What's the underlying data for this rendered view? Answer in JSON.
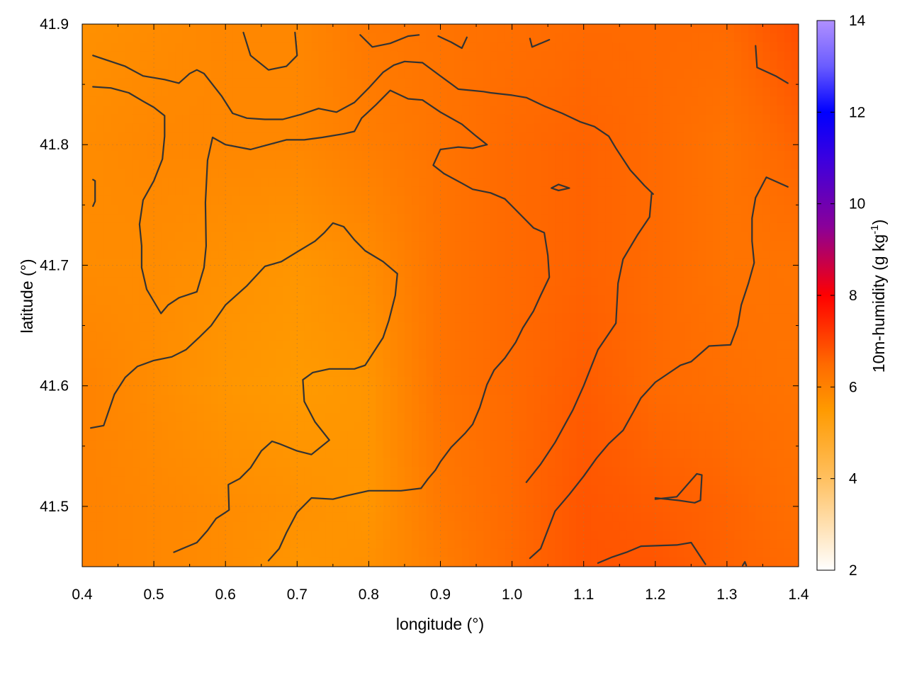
{
  "chart_data": {
    "type": "heatmap",
    "xlabel": "longitude (°)",
    "ylabel": "latitude (°)",
    "colorbar_label": "10m-humidity (g kg",
    "colorbar_label_sup": "-1",
    "colorbar_label_end": ")",
    "xlim": [
      0.4,
      1.4
    ],
    "ylim": [
      41.45,
      41.9
    ],
    "xticks": [
      0.4,
      0.5,
      0.6,
      0.7,
      0.8,
      0.9,
      1.0,
      1.1,
      1.2,
      1.3,
      1.4
    ],
    "xtick_labels": [
      "0.4",
      "0.5",
      "0.6",
      "0.7",
      "0.8",
      "0.9",
      "1.0",
      "1.1",
      "1.2",
      "1.3",
      "1.4"
    ],
    "yticks": [
      41.5,
      41.6,
      41.7,
      41.8,
      41.9
    ],
    "ytick_labels": [
      "41.5",
      "41.6",
      "41.7",
      "41.8",
      "41.9"
    ],
    "colorbar": {
      "range": [
        2,
        14
      ],
      "ticks": [
        2,
        4,
        6,
        8,
        10,
        12,
        14
      ],
      "tick_labels": [
        "2",
        "4",
        "6",
        "8",
        "10",
        "12",
        "14"
      ],
      "stops": [
        {
          "value": 2,
          "color": "#ffffff"
        },
        {
          "value": 4,
          "color": "#ffc060"
        },
        {
          "value": 5.5,
          "color": "#ff9a00"
        },
        {
          "value": 6.5,
          "color": "#ff6a00"
        },
        {
          "value": 8,
          "color": "#ff0000"
        },
        {
          "value": 9.5,
          "color": "#8a0099"
        },
        {
          "value": 11,
          "color": "#3a00e0"
        },
        {
          "value": 12,
          "color": "#0000ff"
        },
        {
          "value": 13,
          "color": "#6a5cff"
        },
        {
          "value": 14,
          "color": "#b090ff"
        }
      ]
    },
    "field_samples": {
      "lon": [
        0.4,
        0.5,
        0.6,
        0.7,
        0.8,
        0.9,
        1.0,
        1.1,
        1.2,
        1.3,
        1.4
      ],
      "lat": [
        41.9,
        41.8,
        41.7,
        41.6,
        41.5,
        41.45
      ],
      "values": [
        [
          5.7,
          5.8,
          5.9,
          5.9,
          6.2,
          6.3,
          6.4,
          6.5,
          6.5,
          6.5,
          6.9
        ],
        [
          5.8,
          5.9,
          5.9,
          5.9,
          6.1,
          6.3,
          6.5,
          6.6,
          6.5,
          6.3,
          6.6
        ],
        [
          5.8,
          5.8,
          5.7,
          5.6,
          5.8,
          6.3,
          6.5,
          6.6,
          6.5,
          6.3,
          6.3
        ],
        [
          6.0,
          5.8,
          5.6,
          5.5,
          5.6,
          6.3,
          6.5,
          6.7,
          6.5,
          6.4,
          6.3
        ],
        [
          6.0,
          5.9,
          5.8,
          5.7,
          5.6,
          6.2,
          6.5,
          6.8,
          6.7,
          6.6,
          6.4
        ],
        [
          6.0,
          5.9,
          5.8,
          5.6,
          5.7,
          6.1,
          6.5,
          6.8,
          6.8,
          6.6,
          6.5
        ]
      ]
    },
    "contours": [
      [
        [
          0.415,
          41.874
        ],
        [
          0.46,
          41.865
        ],
        [
          0.485,
          41.857
        ],
        [
          0.515,
          41.854
        ],
        [
          0.535,
          41.851
        ],
        [
          0.55,
          41.859
        ],
        [
          0.56,
          41.862
        ],
        [
          0.57,
          41.859
        ],
        [
          0.595,
          41.84
        ],
        [
          0.61,
          41.826
        ],
        [
          0.63,
          41.822
        ],
        [
          0.655,
          41.821
        ],
        [
          0.68,
          41.821
        ],
        [
          0.705,
          41.825
        ],
        [
          0.73,
          41.83
        ],
        [
          0.755,
          41.827
        ],
        [
          0.78,
          41.835
        ],
        [
          0.8,
          41.847
        ],
        [
          0.82,
          41.86
        ],
        [
          0.835,
          41.866
        ],
        [
          0.85,
          41.869
        ],
        [
          0.875,
          41.868
        ],
        [
          0.9,
          41.857
        ],
        [
          0.925,
          41.846
        ],
        [
          0.96,
          41.844
        ],
        [
          0.97,
          41.843
        ],
        [
          1.0,
          41.841
        ],
        [
          1.02,
          41.839
        ],
        [
          1.045,
          41.832
        ],
        [
          1.07,
          41.826
        ],
        [
          1.095,
          41.819
        ],
        [
          1.115,
          41.815
        ],
        [
          1.135,
          41.807
        ],
        [
          1.145,
          41.797
        ],
        [
          1.165,
          41.779
        ],
        [
          1.185,
          41.766
        ],
        [
          1.197,
          41.759
        ]
      ],
      [
        [
          0.415,
          41.848
        ],
        [
          0.44,
          41.847
        ],
        [
          0.465,
          41.843
        ],
        [
          0.485,
          41.836
        ],
        [
          0.5,
          41.831
        ],
        [
          0.515,
          41.824
        ],
        [
          0.515,
          41.807
        ],
        [
          0.512,
          41.788
        ],
        [
          0.5,
          41.77
        ],
        [
          0.485,
          41.754
        ],
        [
          0.48,
          41.734
        ],
        [
          0.483,
          41.716
        ],
        [
          0.483,
          41.698
        ],
        [
          0.49,
          41.68
        ],
        [
          0.51,
          41.66
        ],
        [
          0.52,
          41.667
        ],
        [
          0.535,
          41.673
        ],
        [
          0.56,
          41.678
        ],
        [
          0.57,
          41.698
        ],
        [
          0.573,
          41.716
        ],
        [
          0.572,
          41.752
        ],
        [
          0.575,
          41.787
        ],
        [
          0.582,
          41.806
        ],
        [
          0.6,
          41.8
        ],
        [
          0.635,
          41.796
        ],
        [
          0.66,
          41.8
        ],
        [
          0.685,
          41.804
        ],
        [
          0.71,
          41.804
        ],
        [
          0.735,
          41.806
        ],
        [
          0.765,
          41.809
        ],
        [
          0.78,
          41.811
        ],
        [
          0.79,
          41.822
        ],
        [
          0.81,
          41.833
        ],
        [
          0.83,
          41.845
        ],
        [
          0.855,
          41.838
        ],
        [
          0.875,
          41.837
        ],
        [
          0.9,
          41.827
        ],
        [
          0.93,
          41.817
        ],
        [
          0.95,
          41.807
        ],
        [
          0.965,
          41.8
        ]
      ],
      [
        [
          0.965,
          41.8
        ],
        [
          0.945,
          41.797
        ],
        [
          0.925,
          41.798
        ],
        [
          0.9,
          41.796
        ],
        [
          0.89,
          41.783
        ],
        [
          0.905,
          41.776
        ],
        [
          0.93,
          41.768
        ],
        [
          0.945,
          41.763
        ],
        [
          0.97,
          41.76
        ],
        [
          0.99,
          41.755
        ],
        [
          1.0,
          41.749
        ],
        [
          1.015,
          41.74
        ],
        [
          1.03,
          41.731
        ],
        [
          1.045,
          41.727
        ],
        [
          1.05,
          41.708
        ],
        [
          1.052,
          41.69
        ],
        [
          1.04,
          41.675
        ],
        [
          1.03,
          41.662
        ],
        [
          1.015,
          41.648
        ],
        [
          1.005,
          41.636
        ],
        [
          0.99,
          41.623
        ],
        [
          0.975,
          41.613
        ],
        [
          0.965,
          41.601
        ],
        [
          0.955,
          41.582
        ],
        [
          0.945,
          41.568
        ],
        [
          0.935,
          41.561
        ],
        [
          0.915,
          41.549
        ],
        [
          0.9,
          41.537
        ],
        [
          0.893,
          41.53
        ],
        [
          0.883,
          41.523
        ],
        [
          0.873,
          41.515
        ]
      ],
      [
        [
          0.873,
          41.515
        ],
        [
          0.845,
          41.513
        ],
        [
          0.8,
          41.513
        ],
        [
          0.77,
          41.509
        ],
        [
          0.75,
          41.506
        ],
        [
          0.72,
          41.507
        ],
        [
          0.7,
          41.495
        ],
        [
          0.685,
          41.478
        ],
        [
          0.675,
          41.465
        ],
        [
          0.66,
          41.455
        ]
      ],
      [
        [
          0.528,
          41.462
        ],
        [
          0.56,
          41.47
        ],
        [
          0.575,
          41.48
        ],
        [
          0.587,
          41.49
        ],
        [
          0.6,
          41.495
        ],
        [
          0.605,
          41.497
        ],
        [
          0.604,
          41.518
        ],
        [
          0.62,
          41.523
        ],
        [
          0.635,
          41.532
        ],
        [
          0.65,
          41.546
        ],
        [
          0.665,
          41.554
        ],
        [
          0.675,
          41.552
        ],
        [
          0.7,
          41.546
        ],
        [
          0.72,
          41.543
        ],
        [
          0.745,
          41.555
        ],
        [
          0.725,
          41.57
        ],
        [
          0.71,
          41.587
        ],
        [
          0.708,
          41.605
        ],
        [
          0.722,
          41.611
        ],
        [
          0.745,
          41.614
        ],
        [
          0.78,
          41.614
        ],
        [
          0.795,
          41.617
        ],
        [
          0.82,
          41.64
        ],
        [
          0.828,
          41.654
        ],
        [
          0.837,
          41.675
        ],
        [
          0.84,
          41.693
        ],
        [
          0.82,
          41.703
        ],
        [
          0.795,
          41.712
        ],
        [
          0.78,
          41.721
        ],
        [
          0.765,
          41.732
        ],
        [
          0.75,
          41.735
        ],
        [
          0.738,
          41.727
        ],
        [
          0.725,
          41.72
        ],
        [
          0.7,
          41.711
        ],
        [
          0.678,
          41.703
        ],
        [
          0.655,
          41.699
        ],
        [
          0.63,
          41.683
        ],
        [
          0.6,
          41.667
        ],
        [
          0.58,
          41.65
        ],
        [
          0.563,
          41.64
        ],
        [
          0.545,
          41.63
        ],
        [
          0.525,
          41.624
        ],
        [
          0.5,
          41.621
        ],
        [
          0.477,
          41.616
        ],
        [
          0.46,
          41.607
        ],
        [
          0.445,
          41.593
        ],
        [
          0.43,
          41.567
        ],
        [
          0.412,
          41.565
        ]
      ],
      [
        [
          1.025,
          41.457
        ],
        [
          1.04,
          41.465
        ],
        [
          1.06,
          41.496
        ],
        [
          1.08,
          41.51
        ],
        [
          1.1,
          41.525
        ],
        [
          1.118,
          41.54
        ],
        [
          1.135,
          41.552
        ],
        [
          1.155,
          41.563
        ],
        [
          1.17,
          41.579
        ],
        [
          1.18,
          41.59
        ],
        [
          1.2,
          41.603
        ],
        [
          1.225,
          41.613
        ],
        [
          1.235,
          41.617
        ],
        [
          1.25,
          41.62
        ],
        [
          1.275,
          41.633
        ],
        [
          1.305,
          41.634
        ],
        [
          1.315,
          41.65
        ],
        [
          1.32,
          41.667
        ],
        [
          1.33,
          41.685
        ],
        [
          1.338,
          41.702
        ],
        [
          1.335,
          41.72
        ],
        [
          1.335,
          41.739
        ],
        [
          1.34,
          41.756
        ],
        [
          1.355,
          41.773
        ],
        [
          1.385,
          41.765
        ]
      ],
      [
        [
          1.12,
          41.453
        ],
        [
          1.14,
          41.458
        ],
        [
          1.16,
          41.462
        ],
        [
          1.18,
          41.467
        ],
        [
          1.23,
          41.468
        ],
        [
          1.25,
          41.47
        ],
        [
          1.27,
          41.452
        ]
      ],
      [
        [
          1.2,
          41.506
        ],
        [
          1.23,
          41.508
        ],
        [
          1.258,
          41.527
        ],
        [
          1.265,
          41.526
        ],
        [
          1.263,
          41.505
        ],
        [
          1.255,
          41.503
        ],
        [
          1.232,
          41.505
        ],
        [
          1.2,
          41.507
        ]
      ],
      [
        [
          1.02,
          41.52
        ],
        [
          1.04,
          41.535
        ],
        [
          1.06,
          41.553
        ],
        [
          1.085,
          41.58
        ],
        [
          1.1,
          41.6
        ],
        [
          1.12,
          41.63
        ],
        [
          1.145,
          41.652
        ],
        [
          1.148,
          41.685
        ],
        [
          1.155,
          41.705
        ],
        [
          1.175,
          41.725
        ],
        [
          1.192,
          41.74
        ],
        [
          1.195,
          41.76
        ]
      ],
      [
        [
          1.055,
          41.764
        ],
        [
          1.065,
          41.767
        ],
        [
          1.08,
          41.764
        ],
        [
          1.065,
          41.762
        ],
        [
          1.055,
          41.764
        ]
      ],
      [
        [
          0.625,
          41.893
        ],
        [
          0.635,
          41.874
        ],
        [
          0.66,
          41.862
        ],
        [
          0.685,
          41.865
        ],
        [
          0.7,
          41.874
        ],
        [
          0.697,
          41.893
        ]
      ],
      [
        [
          0.788,
          41.891
        ],
        [
          0.805,
          41.881
        ],
        [
          0.83,
          41.884
        ],
        [
          0.855,
          41.89
        ],
        [
          0.87,
          41.891
        ]
      ],
      [
        [
          0.897,
          41.89
        ],
        [
          0.915,
          41.885
        ],
        [
          0.93,
          41.88
        ],
        [
          0.937,
          41.889
        ]
      ],
      [
        [
          1.025,
          41.888
        ],
        [
          1.028,
          41.881
        ],
        [
          1.052,
          41.887
        ]
      ],
      [
        [
          1.34,
          41.882
        ],
        [
          1.342,
          41.864
        ],
        [
          1.368,
          41.857
        ],
        [
          1.385,
          41.851
        ]
      ],
      [
        [
          0.415,
          41.771
        ],
        [
          0.418,
          41.77
        ],
        [
          0.418,
          41.753
        ],
        [
          0.415,
          41.749
        ]
      ],
      [
        [
          1.322,
          41.451
        ],
        [
          1.325,
          41.454
        ],
        [
          1.327,
          41.451
        ]
      ]
    ]
  }
}
